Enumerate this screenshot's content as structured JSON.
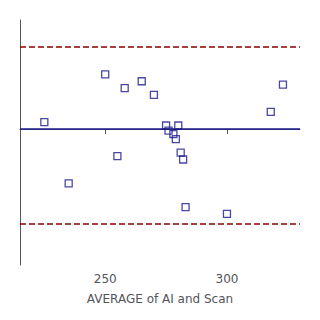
{
  "chart_data": {
    "type": "scatter",
    "xlabel": "AVERAGE of AI and Scan",
    "x": [
      225,
      235,
      250,
      255,
      258,
      265,
      270,
      275,
      276,
      278,
      279,
      280,
      281,
      282,
      283,
      300,
      318,
      323
    ],
    "values": [
      2,
      -16,
      16,
      -8,
      12,
      14,
      10,
      1,
      -0.5,
      -1.5,
      -3,
      1,
      -7,
      -9,
      -23,
      -25,
      5,
      13
    ],
    "color": "#1a1a8c",
    "marker": "square",
    "xlim": [
      215,
      330
    ],
    "xticks": [
      250,
      300
    ],
    "ylim": [
      -40,
      32
    ],
    "tick_labels": "x",
    "grid": false,
    "hlines": [
      {
        "y": 0,
        "color": "#1a1a8c",
        "line_style": "solid"
      },
      {
        "y": 24,
        "color": "#8b0000",
        "line_style": "dashed"
      },
      {
        "y": -28,
        "color": "#8b0000",
        "line_style": "dashed"
      }
    ]
  }
}
